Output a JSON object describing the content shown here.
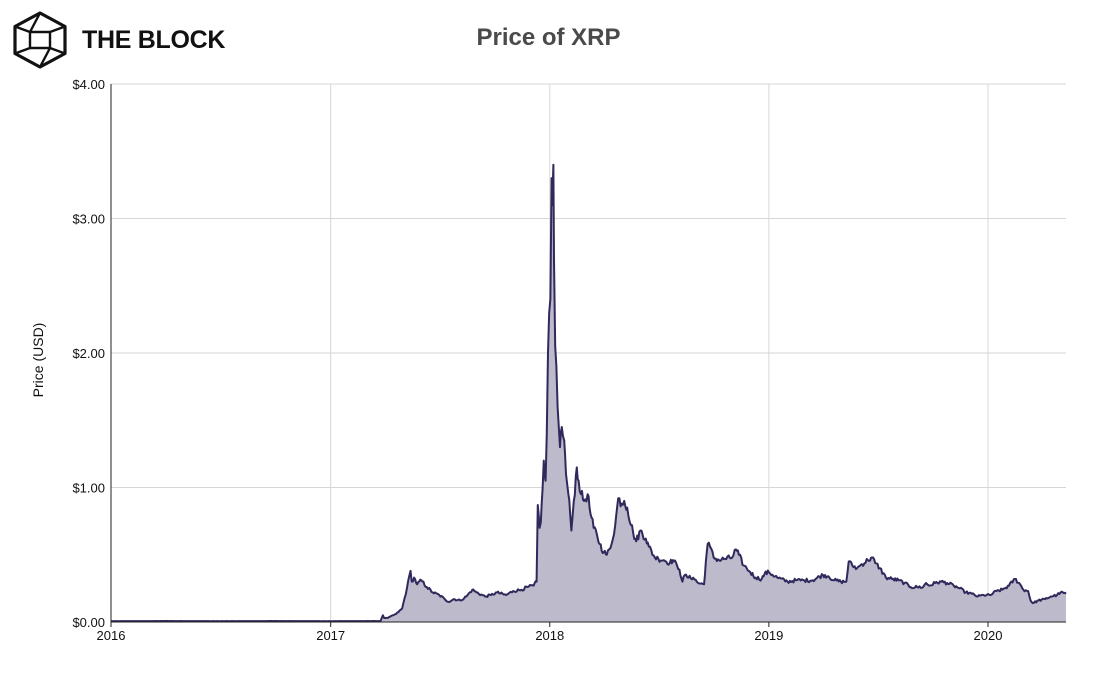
{
  "brand": {
    "name": "THE BLOCK",
    "logo_icon": "cube-logo-icon"
  },
  "chart_data": {
    "type": "area",
    "title": "Price of XRP",
    "xlabel": "",
    "ylabel": "Price (USD)",
    "x_ticks": [
      "2016",
      "2017",
      "2018",
      "2019",
      "2020"
    ],
    "y_ticks": [
      "$0.00",
      "$1.00",
      "$2.00",
      "$3.00",
      "$4.00"
    ],
    "y_tick_values": [
      0,
      1,
      2,
      3,
      4
    ],
    "xlim": [
      "2016-01-01",
      "2020-05-10"
    ],
    "ylim": [
      0,
      4
    ],
    "grid": true,
    "colors": {
      "line": "#2f2a5c",
      "fill": "#bdbacb"
    },
    "series": [
      {
        "x": [
          "2016-01-01",
          "2016-04-01",
          "2016-07-01",
          "2016-10-01",
          "2017-01-01",
          "2017-03-25",
          "2017-03-29",
          "2017-03-31",
          "2017-04-03",
          "2017-04-06",
          "2017-04-10",
          "2017-04-20",
          "2017-04-30",
          "2017-05-08",
          "2017-05-14",
          "2017-05-16",
          "2017-05-20",
          "2017-05-25",
          "2017-06-01",
          "2017-06-10",
          "2017-06-20",
          "2017-07-01",
          "2017-07-10",
          "2017-07-16",
          "2017-07-25",
          "2017-08-05",
          "2017-08-15",
          "2017-08-25",
          "2017-09-01",
          "2017-09-15",
          "2017-09-25",
          "2017-10-05",
          "2017-10-20",
          "2017-11-01",
          "2017-11-15",
          "2017-11-25",
          "2017-12-05",
          "2017-12-10",
          "2017-12-12",
          "2017-12-15",
          "2017-12-17",
          "2017-12-20",
          "2017-12-22",
          "2017-12-25",
          "2017-12-27",
          "2017-12-29",
          "2017-12-31",
          "2018-01-02",
          "2018-01-04",
          "2018-01-05",
          "2018-01-07",
          "2018-01-08",
          "2018-01-10",
          "2018-01-12",
          "2018-01-14",
          "2018-01-16",
          "2018-01-18",
          "2018-01-21",
          "2018-01-25",
          "2018-01-28",
          "2018-02-01",
          "2018-02-04",
          "2018-02-06",
          "2018-02-10",
          "2018-02-15",
          "2018-02-18",
          "2018-02-22",
          "2018-02-27",
          "2018-03-05",
          "2018-03-10",
          "2018-03-15",
          "2018-03-20",
          "2018-03-25",
          "2018-04-01",
          "2018-04-06",
          "2018-04-12",
          "2018-04-20",
          "2018-04-25",
          "2018-05-01",
          "2018-05-05",
          "2018-05-10",
          "2018-05-20",
          "2018-05-25",
          "2018-06-01",
          "2018-06-10",
          "2018-06-15",
          "2018-06-25",
          "2018-07-01",
          "2018-07-10",
          "2018-07-20",
          "2018-07-25",
          "2018-08-01",
          "2018-08-05",
          "2018-08-10",
          "2018-08-14",
          "2018-08-20",
          "2018-08-28",
          "2018-09-05",
          "2018-09-15",
          "2018-09-18",
          "2018-09-21",
          "2018-09-25",
          "2018-10-01",
          "2018-10-10",
          "2018-10-20",
          "2018-11-01",
          "2018-11-07",
          "2018-11-12",
          "2018-11-20",
          "2018-11-25",
          "2018-12-01",
          "2018-12-10",
          "2018-12-20",
          "2018-12-25",
          "2019-01-01",
          "2019-01-15",
          "2019-02-01",
          "2019-02-15",
          "2019-03-01",
          "2019-03-15",
          "2019-04-01",
          "2019-04-10",
          "2019-04-20",
          "2019-05-01",
          "2019-05-10",
          "2019-05-14",
          "2019-05-20",
          "2019-05-28",
          "2019-06-05",
          "2019-06-15",
          "2019-06-22",
          "2019-06-27",
          "2019-07-05",
          "2019-07-15",
          "2019-07-25",
          "2019-08-05",
          "2019-08-15",
          "2019-08-25",
          "2019-09-05",
          "2019-09-15",
          "2019-09-20",
          "2019-09-25",
          "2019-10-05",
          "2019-10-15",
          "2019-10-25",
          "2019-11-05",
          "2019-11-15",
          "2019-11-25",
          "2019-12-05",
          "2019-12-15",
          "2019-12-25",
          "2020-01-05",
          "2020-01-15",
          "2020-01-25",
          "2020-02-05",
          "2020-02-15",
          "2020-02-22",
          "2020-02-29",
          "2020-03-08",
          "2020-03-12",
          "2020-03-16",
          "2020-03-25",
          "2020-04-05",
          "2020-04-15",
          "2020-04-25",
          "2020-05-01",
          "2020-05-10"
        ],
        "values": [
          0.006,
          0.007,
          0.006,
          0.007,
          0.006,
          0.007,
          0.05,
          0.03,
          0.03,
          0.03,
          0.04,
          0.06,
          0.1,
          0.25,
          0.38,
          0.3,
          0.33,
          0.28,
          0.31,
          0.26,
          0.22,
          0.2,
          0.17,
          0.15,
          0.17,
          0.16,
          0.19,
          0.24,
          0.22,
          0.19,
          0.2,
          0.22,
          0.2,
          0.23,
          0.24,
          0.26,
          0.27,
          0.3,
          0.87,
          0.7,
          0.74,
          0.99,
          1.2,
          1.05,
          1.4,
          2.0,
          2.3,
          2.4,
          3.3,
          3.1,
          3.4,
          2.7,
          2.05,
          1.9,
          1.6,
          1.45,
          1.3,
          1.45,
          1.35,
          1.1,
          0.95,
          0.8,
          0.68,
          0.9,
          1.15,
          1.05,
          0.95,
          0.9,
          0.95,
          0.8,
          0.7,
          0.66,
          0.58,
          0.52,
          0.5,
          0.55,
          0.72,
          0.92,
          0.88,
          0.9,
          0.85,
          0.66,
          0.6,
          0.68,
          0.62,
          0.56,
          0.48,
          0.47,
          0.46,
          0.44,
          0.46,
          0.42,
          0.39,
          0.3,
          0.35,
          0.33,
          0.33,
          0.29,
          0.28,
          0.45,
          0.58,
          0.56,
          0.48,
          0.46,
          0.47,
          0.48,
          0.54,
          0.5,
          0.42,
          0.4,
          0.37,
          0.33,
          0.32,
          0.36,
          0.37,
          0.33,
          0.3,
          0.31,
          0.31,
          0.31,
          0.35,
          0.34,
          0.31,
          0.3,
          0.3,
          0.45,
          0.42,
          0.4,
          0.43,
          0.46,
          0.48,
          0.44,
          0.4,
          0.33,
          0.32,
          0.31,
          0.29,
          0.26,
          0.26,
          0.26,
          0.29,
          0.27,
          0.29,
          0.3,
          0.29,
          0.27,
          0.25,
          0.22,
          0.21,
          0.19,
          0.2,
          0.2,
          0.23,
          0.24,
          0.27,
          0.32,
          0.29,
          0.24,
          0.23,
          0.16,
          0.14,
          0.16,
          0.17,
          0.19,
          0.2,
          0.22,
          0.21
        ]
      }
    ]
  }
}
